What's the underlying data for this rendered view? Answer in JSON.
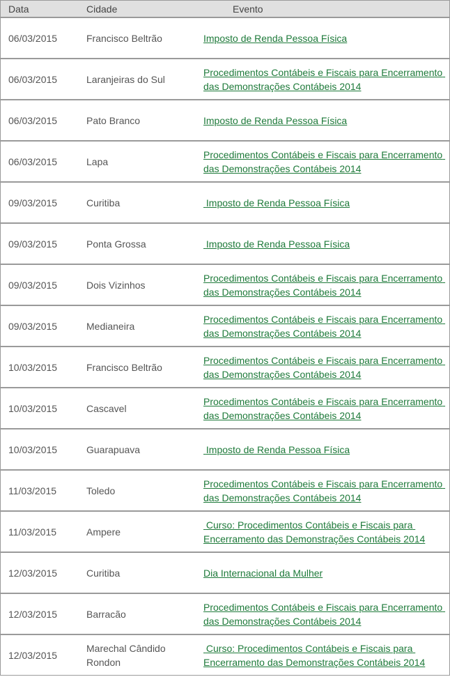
{
  "headers": {
    "date": "Data",
    "city": "Cidade",
    "event": "Evento"
  },
  "link_color": "#1e7a3a",
  "rows": [
    {
      "date": "06/03/2015",
      "city": "Francisco Beltrão",
      "event": "Imposto de Renda Pessoa Física"
    },
    {
      "date": "06/03/2015",
      "city": "Laranjeiras do Sul",
      "event": "Procedimentos Contábeis e Fiscais para Encerramento das Demonstrações Contábeis 2014"
    },
    {
      "date": "06/03/2015",
      "city": "Pato Branco",
      "event": "Imposto de Renda Pessoa Física"
    },
    {
      "date": "06/03/2015",
      "city": "Lapa",
      "event": "Procedimentos Contábeis e Fiscais para Encerramento das Demonstrações Contábeis 2014"
    },
    {
      "date": "09/03/2015",
      "city": "Curitiba",
      "event": " Imposto de Renda Pessoa Física"
    },
    {
      "date": "09/03/2015",
      "city": "Ponta Grossa",
      "event": " Imposto de Renda Pessoa Física"
    },
    {
      "date": "09/03/2015",
      "city": "Dois Vizinhos",
      "event": "Procedimentos Contábeis e Fiscais para Encerramento das Demonstrações Contábeis 2014"
    },
    {
      "date": "09/03/2015",
      "city": "Medianeira",
      "event": "Procedimentos Contábeis e Fiscais para Encerramento das Demonstrações Contábeis 2014"
    },
    {
      "date": "10/03/2015",
      "city": "Francisco Beltrão",
      "event": "Procedimentos Contábeis e Fiscais para Encerramento das Demonstrações Contábeis 2014"
    },
    {
      "date": "10/03/2015",
      "city": "Cascavel",
      "event": "Procedimentos Contábeis e Fiscais para Encerramento das Demonstrações Contábeis 2014"
    },
    {
      "date": "10/03/2015",
      "city": "Guarapuava",
      "event": " Imposto de Renda Pessoa Física"
    },
    {
      "date": "11/03/2015",
      "city": "Toledo",
      "event": "Procedimentos Contábeis e Fiscais para Encerramento das Demonstrações Contábeis 2014"
    },
    {
      "date": "11/03/2015",
      "city": "Ampere",
      "event": " Curso: Procedimentos Contábeis e Fiscais para Encerramento das Demonstrações Contábeis 2014"
    },
    {
      "date": "12/03/2015",
      "city": "Curitiba",
      "event": "Dia Internacional da Mulher"
    },
    {
      "date": "12/03/2015",
      "city": "Barracão",
      "event": "Procedimentos Contábeis e Fiscais para Encerramento das Demonstrações Contábeis 2014"
    },
    {
      "date": "12/03/2015",
      "city": "Marechal Cândido Rondon",
      "event": " Curso: Procedimentos Contábeis e Fiscais para Encerramento das Demonstrações Contábeis 2014"
    }
  ]
}
